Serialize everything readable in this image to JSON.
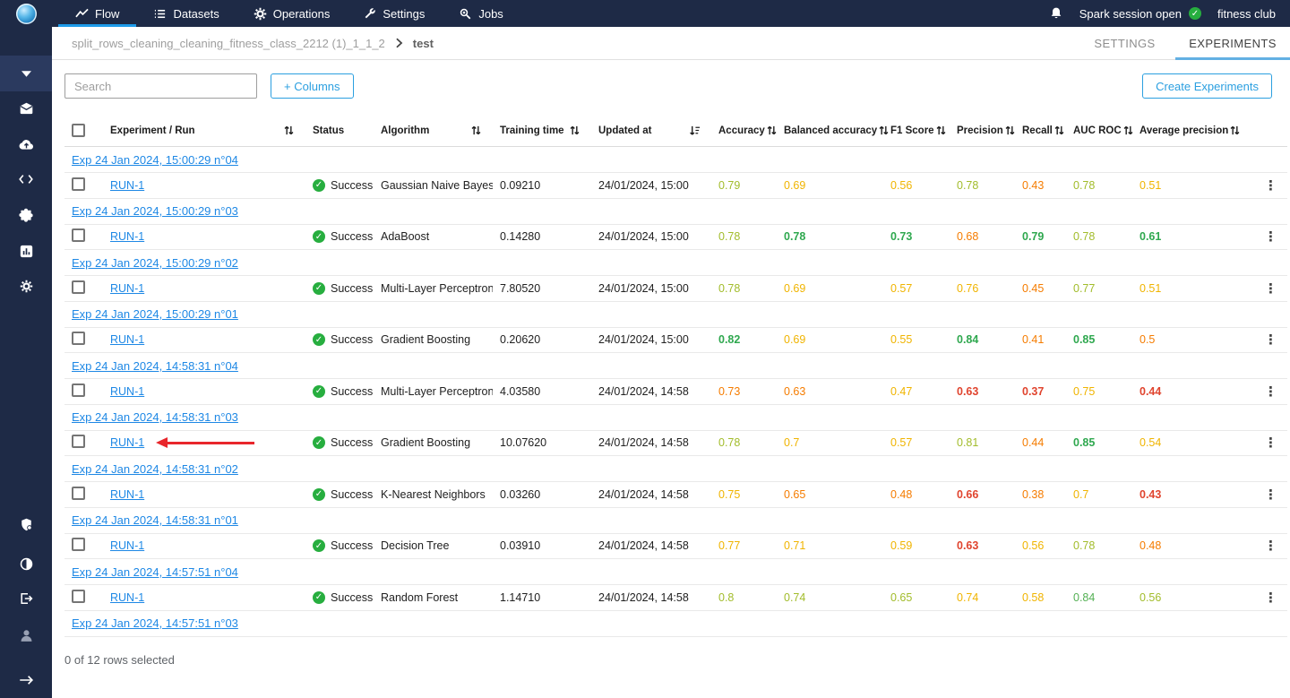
{
  "topnav": {
    "items": [
      {
        "label": "Flow",
        "icon": "trending",
        "active": true
      },
      {
        "label": "Datasets",
        "icon": "list",
        "active": false
      },
      {
        "label": "Operations",
        "icon": "gear",
        "active": false
      },
      {
        "label": "Settings",
        "icon": "wrench",
        "active": false
      },
      {
        "label": "Jobs",
        "icon": "jobs-search",
        "active": false
      }
    ],
    "spark_status": "Spark session open",
    "workspace": "fitness club"
  },
  "sidebar": {
    "top_icons": [
      "mail",
      "cloud-upload",
      "code",
      "puzzle",
      "bar-chart",
      "gear"
    ],
    "bottom_icons": [
      "shield",
      "contrast",
      "sign-out",
      "user",
      "arrow-right"
    ]
  },
  "breadcrumb": {
    "parent": "split_rows_cleaning_cleaning_fitness_class_2212 (1)_1_1_2",
    "current": "test"
  },
  "tabs": [
    {
      "label": "SETTINGS",
      "active": false
    },
    {
      "label": "EXPERIMENTS",
      "active": true
    }
  ],
  "toolbar": {
    "search_placeholder": "Search",
    "columns_button": "+ Columns",
    "create_button": "Create Experiments"
  },
  "table": {
    "headers": [
      {
        "type": "select",
        "label": ""
      },
      {
        "label": "Experiment / Run",
        "sort": "both",
        "align": "between"
      },
      {
        "label": "Status"
      },
      {
        "label": "Algorithm",
        "sort": "both",
        "align": "between"
      },
      {
        "label": "Training time",
        "sort": "both",
        "align": "between"
      },
      {
        "label": "Updated at",
        "sort": "desc",
        "align": "between"
      },
      {
        "label": "Accuracy",
        "sort": "both"
      },
      {
        "label": "Balanced accuracy",
        "sort": "both"
      },
      {
        "label": "F1 Score",
        "sort": "both"
      },
      {
        "label": "Precision",
        "sort": "both"
      },
      {
        "label": "Recall",
        "sort": "both"
      },
      {
        "label": "AUC ROC",
        "sort": "both"
      },
      {
        "label": "Average precision",
        "sort": "both"
      },
      {
        "type": "menu",
        "label": ""
      }
    ],
    "groups": [
      {
        "label": "Exp 24 Jan 2024, 15:00:29 n°04",
        "run": {
          "name": "RUN-1",
          "status": "Success",
          "algorithm": "Gaussian Naive Bayes",
          "training_time": "0.09210",
          "updated_at": "24/01/2024, 15:00",
          "metrics": [
            {
              "value": "0.79",
              "tone": "yg"
            },
            {
              "value": "0.69",
              "tone": "y"
            },
            {
              "value": "0.56",
              "tone": "y"
            },
            {
              "value": "0.78",
              "tone": "yg"
            },
            {
              "value": "0.43",
              "tone": "o"
            },
            {
              "value": "0.78",
              "tone": "yg"
            },
            {
              "value": "0.51",
              "tone": "y"
            }
          ]
        }
      },
      {
        "label": "Exp 24 Jan 2024, 15:00:29 n°03",
        "run": {
          "name": "RUN-1",
          "status": "Success",
          "algorithm": "AdaBoost",
          "training_time": "0.14280",
          "updated_at": "24/01/2024, 15:00",
          "metrics": [
            {
              "value": "0.78",
              "tone": "yg"
            },
            {
              "value": "0.78",
              "tone": "gplus"
            },
            {
              "value": "0.73",
              "tone": "gplus"
            },
            {
              "value": "0.68",
              "tone": "o"
            },
            {
              "value": "0.79",
              "tone": "gplus"
            },
            {
              "value": "0.78",
              "tone": "yg"
            },
            {
              "value": "0.61",
              "tone": "gplus"
            }
          ]
        }
      },
      {
        "label": "Exp 24 Jan 2024, 15:00:29 n°02",
        "run": {
          "name": "RUN-1",
          "status": "Success",
          "algorithm": "Multi-Layer Perceptron",
          "training_time": "7.80520",
          "updated_at": "24/01/2024, 15:00",
          "metrics": [
            {
              "value": "0.78",
              "tone": "yg"
            },
            {
              "value": "0.69",
              "tone": "y"
            },
            {
              "value": "0.57",
              "tone": "y"
            },
            {
              "value": "0.76",
              "tone": "y"
            },
            {
              "value": "0.45",
              "tone": "o"
            },
            {
              "value": "0.77",
              "tone": "yg"
            },
            {
              "value": "0.51",
              "tone": "y"
            }
          ]
        }
      },
      {
        "label": "Exp 24 Jan 2024, 15:00:29 n°01",
        "run": {
          "name": "RUN-1",
          "status": "Success",
          "algorithm": "Gradient Boosting",
          "training_time": "0.20620",
          "updated_at": "24/01/2024, 15:00",
          "metrics": [
            {
              "value": "0.82",
              "tone": "gplus"
            },
            {
              "value": "0.69",
              "tone": "y"
            },
            {
              "value": "0.55",
              "tone": "y"
            },
            {
              "value": "0.84",
              "tone": "gplus"
            },
            {
              "value": "0.41",
              "tone": "o"
            },
            {
              "value": "0.85",
              "tone": "gplus"
            },
            {
              "value": "0.5",
              "tone": "o"
            }
          ]
        }
      },
      {
        "label": "Exp 24 Jan 2024, 14:58:31 n°04",
        "run": {
          "name": "RUN-1",
          "status": "Success",
          "algorithm": "Multi-Layer Perceptron",
          "training_time": "4.03580",
          "updated_at": "24/01/2024, 14:58",
          "metrics": [
            {
              "value": "0.73",
              "tone": "o"
            },
            {
              "value": "0.63",
              "tone": "o"
            },
            {
              "value": "0.47",
              "tone": "y"
            },
            {
              "value": "0.63",
              "tone": "rplus"
            },
            {
              "value": "0.37",
              "tone": "rplus"
            },
            {
              "value": "0.75",
              "tone": "y"
            },
            {
              "value": "0.44",
              "tone": "rplus"
            }
          ]
        }
      },
      {
        "label": "Exp 24 Jan 2024, 14:58:31 n°03",
        "annotated": true,
        "run": {
          "name": "RUN-1",
          "status": "Success",
          "algorithm": "Gradient Boosting",
          "training_time": "10.07620",
          "updated_at": "24/01/2024, 14:58",
          "metrics": [
            {
              "value": "0.78",
              "tone": "yg"
            },
            {
              "value": "0.7",
              "tone": "y"
            },
            {
              "value": "0.57",
              "tone": "y"
            },
            {
              "value": "0.81",
              "tone": "yg"
            },
            {
              "value": "0.44",
              "tone": "o"
            },
            {
              "value": "0.85",
              "tone": "gplus"
            },
            {
              "value": "0.54",
              "tone": "y"
            }
          ]
        }
      },
      {
        "label": "Exp 24 Jan 2024, 14:58:31 n°02",
        "run": {
          "name": "RUN-1",
          "status": "Success",
          "algorithm": "K-Nearest Neighbors",
          "training_time": "0.03260",
          "updated_at": "24/01/2024, 14:58",
          "metrics": [
            {
              "value": "0.75",
              "tone": "y"
            },
            {
              "value": "0.65",
              "tone": "o"
            },
            {
              "value": "0.48",
              "tone": "o"
            },
            {
              "value": "0.66",
              "tone": "rplus"
            },
            {
              "value": "0.38",
              "tone": "o"
            },
            {
              "value": "0.7",
              "tone": "y"
            },
            {
              "value": "0.43",
              "tone": "rplus"
            }
          ]
        }
      },
      {
        "label": "Exp 24 Jan 2024, 14:58:31 n°01",
        "run": {
          "name": "RUN-1",
          "status": "Success",
          "algorithm": "Decision Tree",
          "training_time": "0.03910",
          "updated_at": "24/01/2024, 14:58",
          "metrics": [
            {
              "value": "0.77",
              "tone": "y"
            },
            {
              "value": "0.71",
              "tone": "y"
            },
            {
              "value": "0.59",
              "tone": "y"
            },
            {
              "value": "0.63",
              "tone": "rplus"
            },
            {
              "value": "0.56",
              "tone": "y"
            },
            {
              "value": "0.78",
              "tone": "yg"
            },
            {
              "value": "0.48",
              "tone": "o"
            }
          ]
        }
      },
      {
        "label": "Exp 24 Jan 2024, 14:57:51 n°04",
        "run": {
          "name": "RUN-1",
          "status": "Success",
          "algorithm": "Random Forest",
          "training_time": "1.14710",
          "updated_at": "24/01/2024, 14:58",
          "metrics": [
            {
              "value": "0.8",
              "tone": "yg"
            },
            {
              "value": "0.74",
              "tone": "yg"
            },
            {
              "value": "0.65",
              "tone": "yg"
            },
            {
              "value": "0.74",
              "tone": "y"
            },
            {
              "value": "0.58",
              "tone": "y"
            },
            {
              "value": "0.84",
              "tone": "g"
            },
            {
              "value": "0.56",
              "tone": "yg"
            }
          ]
        }
      },
      {
        "label": "Exp 24 Jan 2024, 14:57:51 n°03",
        "run": null
      }
    ]
  },
  "footer": {
    "selection": "0 of 12 rows selected"
  },
  "colors": {
    "navbar_navy": "#1E2A46",
    "accent_blue": "#2B9FE0",
    "nav_underline_blue": "#1E9BE9",
    "tab_underline_blue": "#63B0E3",
    "link_blue": "#1E88E5",
    "success_green": "#27AE3F",
    "metric_green_bold": "#2FA84F",
    "metric_green": "#54B054",
    "metric_yellowgreen": "#A2BC2B",
    "metric_yellow": "#F0B400",
    "metric_orange": "#F57C00",
    "metric_red": "#E0442E",
    "annotation_arrow_red": "#E8262B"
  }
}
